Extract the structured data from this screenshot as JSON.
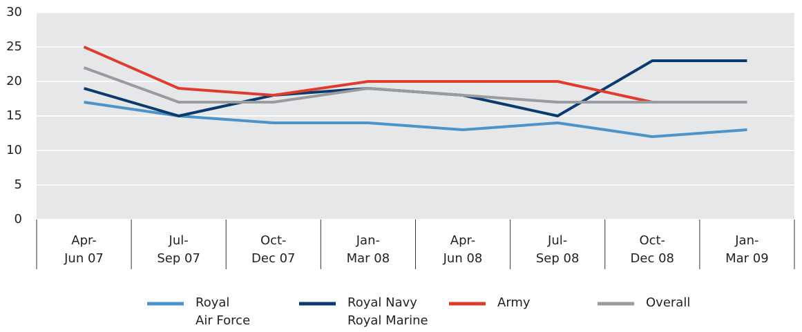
{
  "chart_data": {
    "type": "line",
    "categories": [
      "Apr-\nJun 07",
      "Jul-\nSep 07",
      "Oct-\nDec 07",
      "Jan-\nMar 08",
      "Apr-\nJun 08",
      "Jul-\nSep 08",
      "Oct-\nDec 08",
      "Jan-\nMar 09"
    ],
    "series": [
      {
        "name": "Royal\nAir Force",
        "color": "#4b93c9",
        "values": [
          17,
          15,
          14,
          14,
          13,
          14,
          12,
          13
        ]
      },
      {
        "name": "Royal Navy\nRoyal Marine",
        "color": "#0b3a6e",
        "values": [
          19,
          15,
          18,
          19,
          18,
          15,
          23,
          23
        ]
      },
      {
        "name": "Army",
        "color": "#e03b2f",
        "values": [
          25,
          19,
          18,
          20,
          20,
          20,
          17,
          17
        ]
      },
      {
        "name": "Overall",
        "color": "#9a9b9f",
        "values": [
          22,
          17,
          17,
          19,
          18,
          17,
          17,
          17
        ]
      }
    ],
    "ylim": [
      0,
      30
    ],
    "yticks": [
      0,
      5,
      10,
      15,
      20,
      25,
      30
    ],
    "grid": true,
    "legend": "bottom"
  }
}
